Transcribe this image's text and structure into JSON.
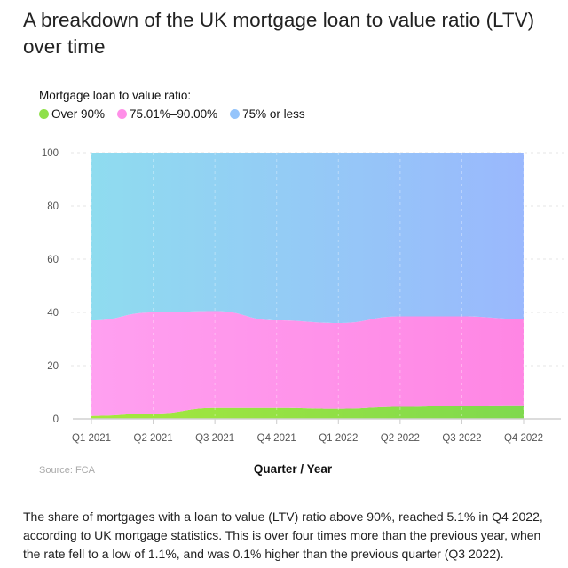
{
  "title": "A breakdown of the UK mortgage loan to value ratio (LTV) over time",
  "source": "Source: FCA",
  "paragraph": "The share of mortgages with a loan to value (LTV) ratio above 90%, reached 5.1% in Q4 2022, according to UK mortgage statistics. This is over four times more than the previous year, when the rate fell to a low of 1.1%, and was 0.1% higher than the previous quarter (Q3 2022).",
  "chart_data": {
    "type": "area",
    "stacked": true,
    "legend_title": "Mortgage loan to value ratio:",
    "xlabel": "Quarter / Year",
    "ylabel": "",
    "ylim": [
      0,
      100
    ],
    "yticks": [
      "0",
      "20",
      "40",
      "60",
      "80",
      "100"
    ],
    "categories": [
      "Q1 2021",
      "Q2 2021",
      "Q3 2021",
      "Q4 2021",
      "Q1 2022",
      "Q2 2022",
      "Q3 2022",
      "Q4 2022"
    ],
    "series": [
      {
        "name": "Over 90%",
        "color": "#8fe04a",
        "values": [
          1.1,
          2.0,
          4.1,
          4.1,
          3.8,
          4.5,
          5.0,
          5.1
        ]
      },
      {
        "name": "75.01%–90.00%",
        "color": "#ff8fe8",
        "values": [
          35.9,
          38.0,
          36.4,
          32.9,
          32.2,
          34.0,
          33.5,
          32.4
        ]
      },
      {
        "name": "75% or less",
        "color": "#94c4fb",
        "values": [
          63.0,
          60.0,
          59.5,
          63.0,
          64.0,
          61.5,
          61.5,
          62.5
        ]
      }
    ],
    "legend_position": "top-left",
    "grid": true
  }
}
